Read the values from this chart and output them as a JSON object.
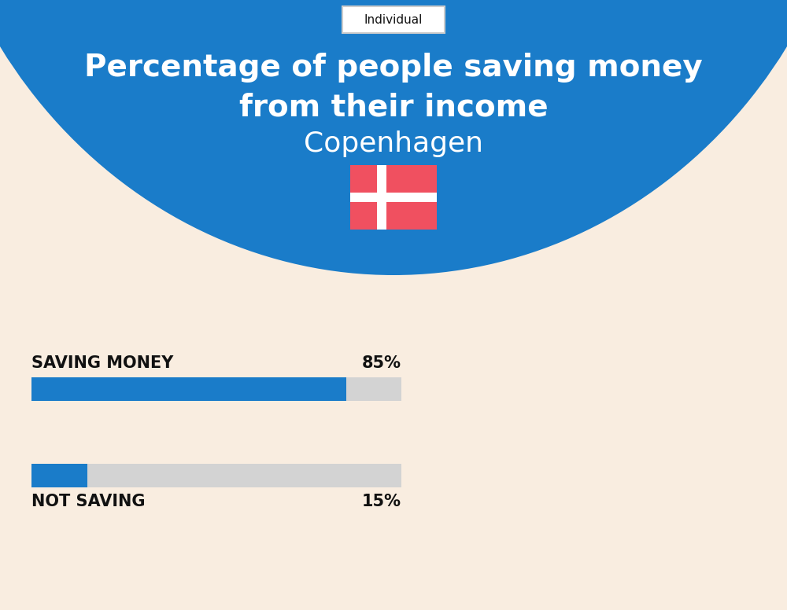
{
  "title_line1": "Percentage of people saving money",
  "title_line2": "from their income",
  "city": "Copenhagen",
  "tab_label": "Individual",
  "bar1_label": "SAVING MONEY",
  "bar1_value": 85,
  "bar1_pct": "85%",
  "bar2_label": "NOT SAVING",
  "bar2_value": 15,
  "bar2_pct": "15%",
  "bar_blue": "#1a7cc9",
  "bar_gray": "#d3d3d3",
  "bg_color": "#f9ede0",
  "header_bg": "#1a7cc9",
  "text_white": "#ffffff",
  "text_black": "#111111",
  "flag_red": "#f05060",
  "flag_white": "#ffffff"
}
